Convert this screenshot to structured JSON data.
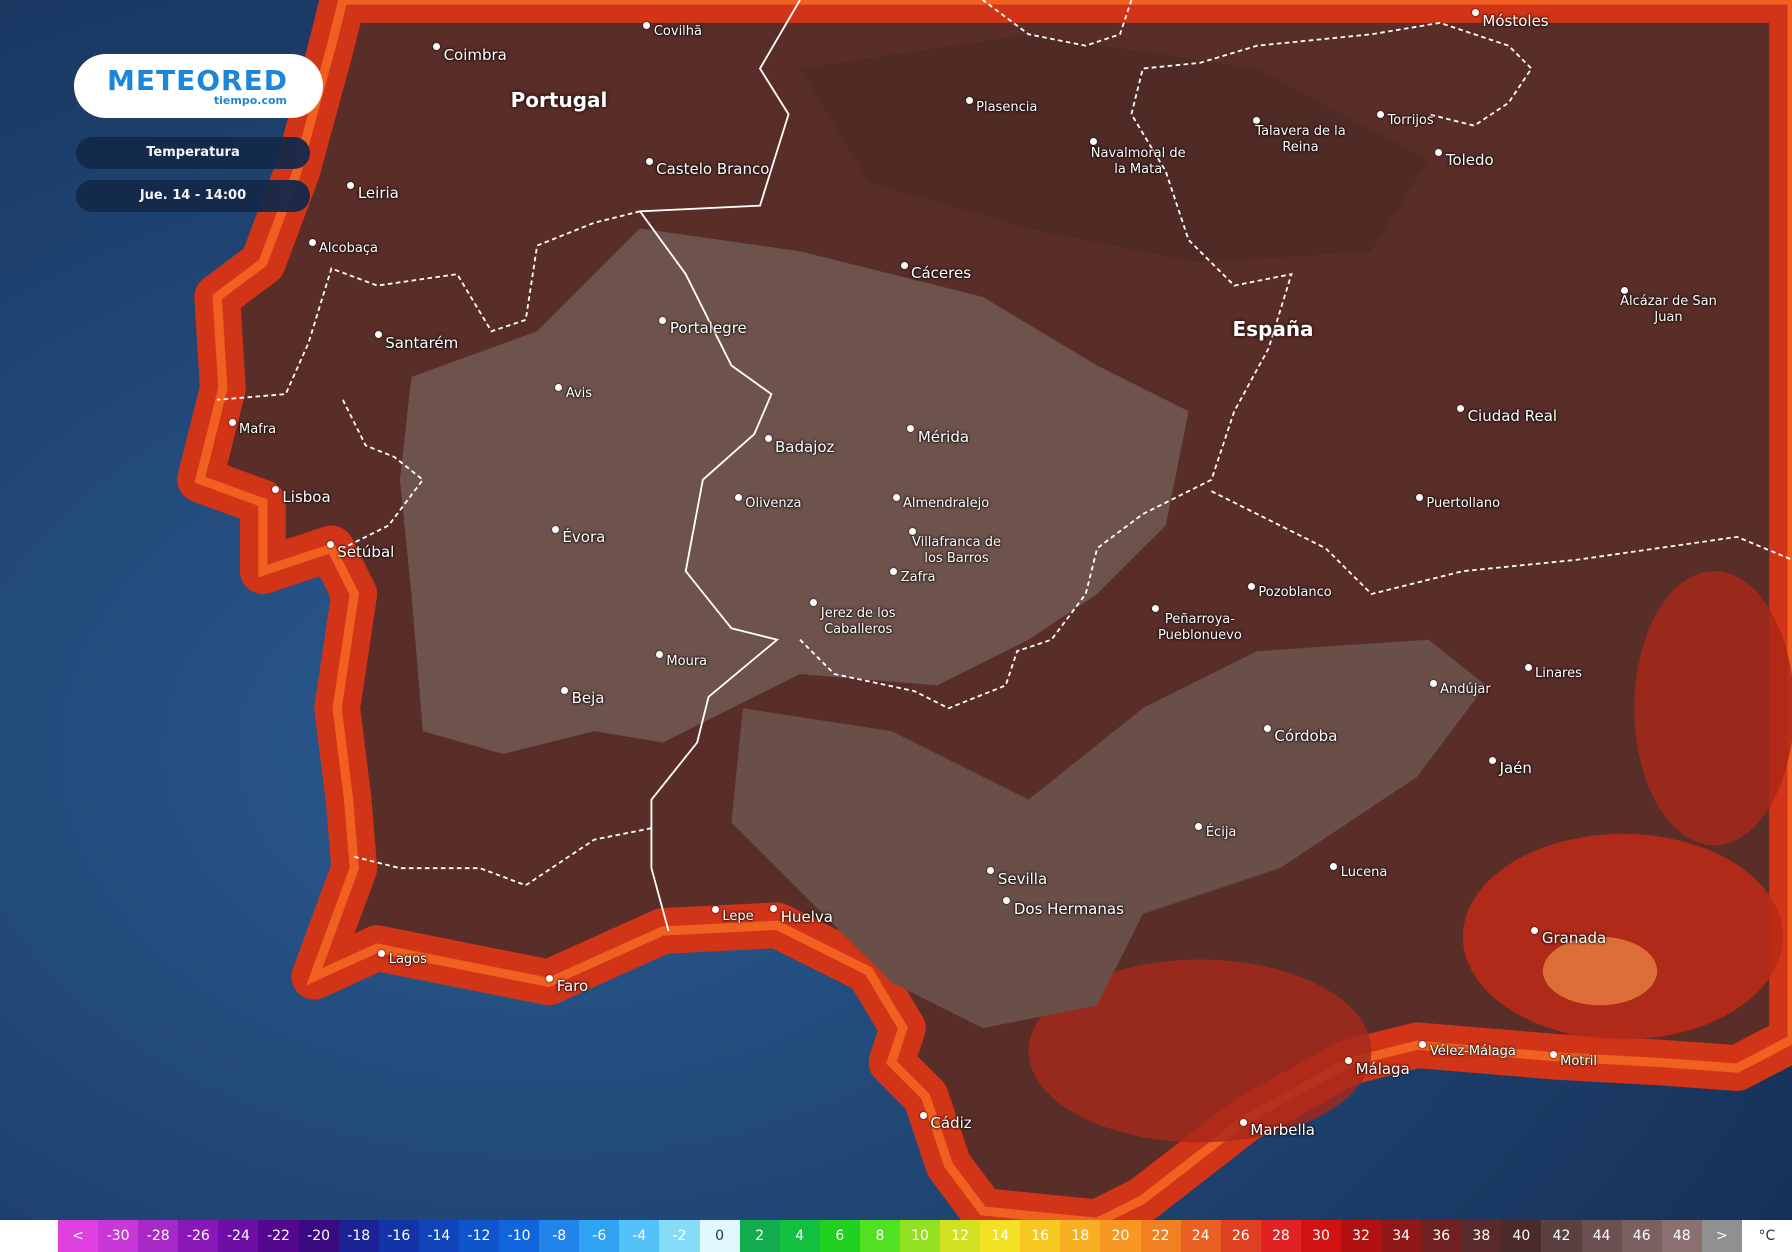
{
  "header": {
    "logo": "METEORED",
    "logo_sub": "tiempo.com",
    "layer": "Temperatura",
    "time": "Jue. 14 - 14:00"
  },
  "map": {
    "countries": [
      "Portugal",
      "España"
    ],
    "cities": [
      "Coimbra",
      "Covilhã",
      "Castelo Branco",
      "Leiria",
      "Alcobaça",
      "Santarém",
      "Portalegre",
      "Avis",
      "Mafra",
      "Lisboa",
      "Setúbal",
      "Évora",
      "Badajoz",
      "Olivenza",
      "Moura",
      "Beja",
      "Lagos",
      "Faro",
      "Lepe",
      "Huelva",
      "Plasencia",
      "Navalmoral de la Mata",
      "Talavera de la Reina",
      "Torrijos",
      "Toledo",
      "Móstoles",
      "Cáceres",
      "Mérida",
      "Almendralejo",
      "Villafranca de los Barros",
      "Zafra",
      "Jerez de los Caballeros",
      "Alcázar de San Juan",
      "Ciudad Real",
      "Puertollano",
      "Pozoblanco",
      "Peñarroya-Pueblonuevo",
      "Andújar",
      "Linares",
      "Córdoba",
      "Jaén",
      "Écija",
      "Lucena",
      "Sevilla",
      "Dos Hermanas",
      "Granada",
      "Vélez-Málaga",
      "Motril",
      "Málaga",
      "Marbella",
      "Cádiz"
    ]
  },
  "legend": {
    "labels": [
      "<",
      -30,
      -28,
      -26,
      -24,
      -22,
      -20,
      -18,
      -16,
      -14,
      -12,
      -10,
      -8,
      -6,
      -4,
      -2,
      0,
      2,
      4,
      6,
      8,
      10,
      12,
      14,
      16,
      18,
      20,
      22,
      24,
      26,
      28,
      30,
      32,
      34,
      36,
      38,
      40,
      42,
      44,
      46,
      48,
      ">"
    ],
    "colors": [
      "#e040e0",
      "#c838d8",
      "#a828c8",
      "#8a18b8",
      "#6e0ea6",
      "#540890",
      "#3a0a80",
      "#1a2296",
      "#1234a8",
      "#1044ba",
      "#1054cc",
      "#1064dc",
      "#2084ea",
      "#30a2f2",
      "#52c2f8",
      "#86dcf8",
      "#e2f8ff",
      "#12ac4e",
      "#12c040",
      "#22d022",
      "#52e022",
      "#92e022",
      "#d2e022",
      "#f2e022",
      "#f8c822",
      "#f8b022",
      "#f89822",
      "#f08022",
      "#e86022",
      "#e04022",
      "#e02222",
      "#d01212",
      "#b01212",
      "#901818",
      "#702020",
      "#5a2a2a",
      "#4a2a2a",
      "#5a4040",
      "#6a5050",
      "#7a6060",
      "#8a7070",
      "#909090"
    ],
    "unit": "°C"
  }
}
